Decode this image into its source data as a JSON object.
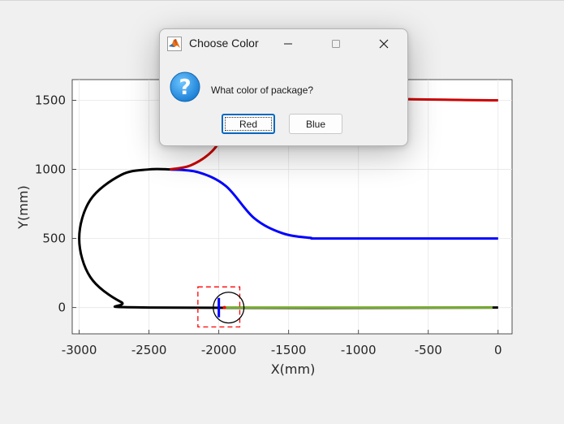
{
  "dialog": {
    "title": "Choose Color",
    "message": "What color of package?",
    "buttons": {
      "red": "Red",
      "blue": "Blue"
    }
  },
  "chart_data": {
    "type": "line",
    "xlabel": "X(mm)",
    "ylabel": "Y(mm)",
    "xlim": [
      -3050,
      100
    ],
    "ylim": [
      -190,
      1650
    ],
    "xticks": [
      -3000,
      -2500,
      -2000,
      -1500,
      -1000,
      -500,
      0
    ],
    "yticks": [
      0,
      500,
      1000,
      1500
    ],
    "xtick_labels": [
      "-3000",
      "-2500",
      "-2000",
      "-1500",
      "-1000",
      "-500",
      "0"
    ],
    "ytick_labels": [
      "0",
      "500",
      "1000",
      "1500"
    ],
    "grid": true,
    "series": [
      {
        "color": "#000000",
        "x": [
          0,
          -2500,
          -2700,
          -2920,
          -3000,
          -2920,
          -2700,
          -2500,
          -2350
        ],
        "y": [
          0,
          0,
          40,
          220,
          500,
          780,
          960,
          1000,
          1000
        ]
      },
      {
        "color": "#0000ff",
        "x": [
          -2350,
          -2150,
          -1950,
          -1750,
          -1550,
          -1350,
          -1200,
          0
        ],
        "y": [
          1000,
          980,
          880,
          650,
          540,
          505,
          500,
          500
        ]
      },
      {
        "color": "#cc0000",
        "x": [
          -2350,
          -2200,
          -2050,
          -1900,
          -1750,
          0
        ],
        "y": [
          1000,
          1030,
          1130,
          1330,
          1500,
          1500
        ]
      },
      {
        "color": "#77ac30",
        "x": [
          -1960,
          -40
        ],
        "y": [
          0,
          0
        ]
      }
    ],
    "markers": {
      "dashed_box": {
        "color": "#ff0000",
        "x": [
          -2150,
          -1850
        ],
        "y": [
          -140,
          150
        ]
      },
      "circle": {
        "color": "#000000",
        "cx": -1930,
        "cy": 0,
        "r": 110
      },
      "blue_bar": {
        "color": "#0000ff",
        "x": -2000,
        "y": [
          -70,
          70
        ]
      },
      "red_dot": {
        "color": "#ff0000",
        "x": -1960,
        "y": 0
      }
    }
  }
}
